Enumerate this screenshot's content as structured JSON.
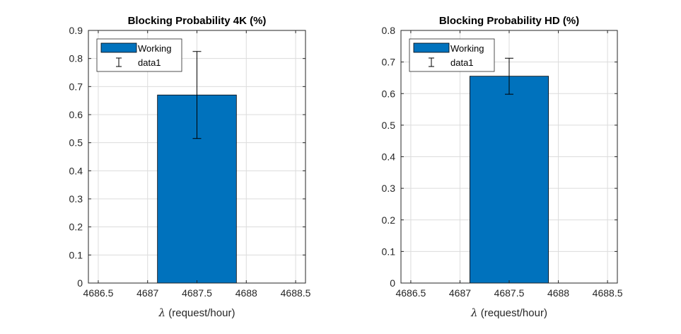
{
  "figure": {
    "background": "#ffffff"
  },
  "chart_data": [
    {
      "type": "bar",
      "title": "Blocking Probability 4K (%)",
      "xlabel_symbol": "λ",
      "xlabel": " (request/hour)",
      "ylabel": "",
      "xlim": [
        4686.4,
        4688.6
      ],
      "ylim": [
        0,
        0.9
      ],
      "xticks": [
        4686.5,
        4687,
        4687.5,
        4688,
        4688.5
      ],
      "xtick_labels": [
        "4686.5",
        "4687",
        "4687.5",
        "4688",
        "4688.5"
      ],
      "yticks": [
        0,
        0.1,
        0.2,
        0.3,
        0.4,
        0.5,
        0.6,
        0.7,
        0.8,
        0.9
      ],
      "ytick_labels": [
        "0",
        "0.1",
        "0.2",
        "0.3",
        "0.4",
        "0.5",
        "0.6",
        "0.7",
        "0.8",
        "0.9"
      ],
      "grid": true,
      "legend_position": "top-left",
      "bar_width": 0.8,
      "series": [
        {
          "name": "Working",
          "x": [
            4687.5
          ],
          "values": [
            0.67
          ],
          "color": "#0072BD"
        }
      ],
      "errorbars": {
        "name": "data1",
        "x": [
          4687.5
        ],
        "y": [
          0.67
        ],
        "lower": [
          0.515
        ],
        "upper": [
          0.825
        ],
        "color": "#000000"
      }
    },
    {
      "type": "bar",
      "title": "Blocking Probability HD (%)",
      "xlabel_symbol": "λ",
      "xlabel": " (request/hour)",
      "ylabel": "",
      "xlim": [
        4686.4,
        4688.6
      ],
      "ylim": [
        0,
        0.8
      ],
      "xticks": [
        4686.5,
        4687,
        4687.5,
        4688,
        4688.5
      ],
      "xtick_labels": [
        "4686.5",
        "4687",
        "4687.5",
        "4688",
        "4688.5"
      ],
      "yticks": [
        0,
        0.1,
        0.2,
        0.3,
        0.4,
        0.5,
        0.6,
        0.7,
        0.8
      ],
      "ytick_labels": [
        "0",
        "0.1",
        "0.2",
        "0.3",
        "0.4",
        "0.5",
        "0.6",
        "0.7",
        "0.8"
      ],
      "grid": true,
      "legend_position": "top-left",
      "bar_width": 0.8,
      "series": [
        {
          "name": "Working",
          "x": [
            4687.5
          ],
          "values": [
            0.655
          ],
          "color": "#0072BD"
        }
      ],
      "errorbars": {
        "name": "data1",
        "x": [
          4687.5
        ],
        "y": [
          0.655
        ],
        "lower": [
          0.598
        ],
        "upper": [
          0.712
        ],
        "color": "#000000"
      }
    }
  ]
}
